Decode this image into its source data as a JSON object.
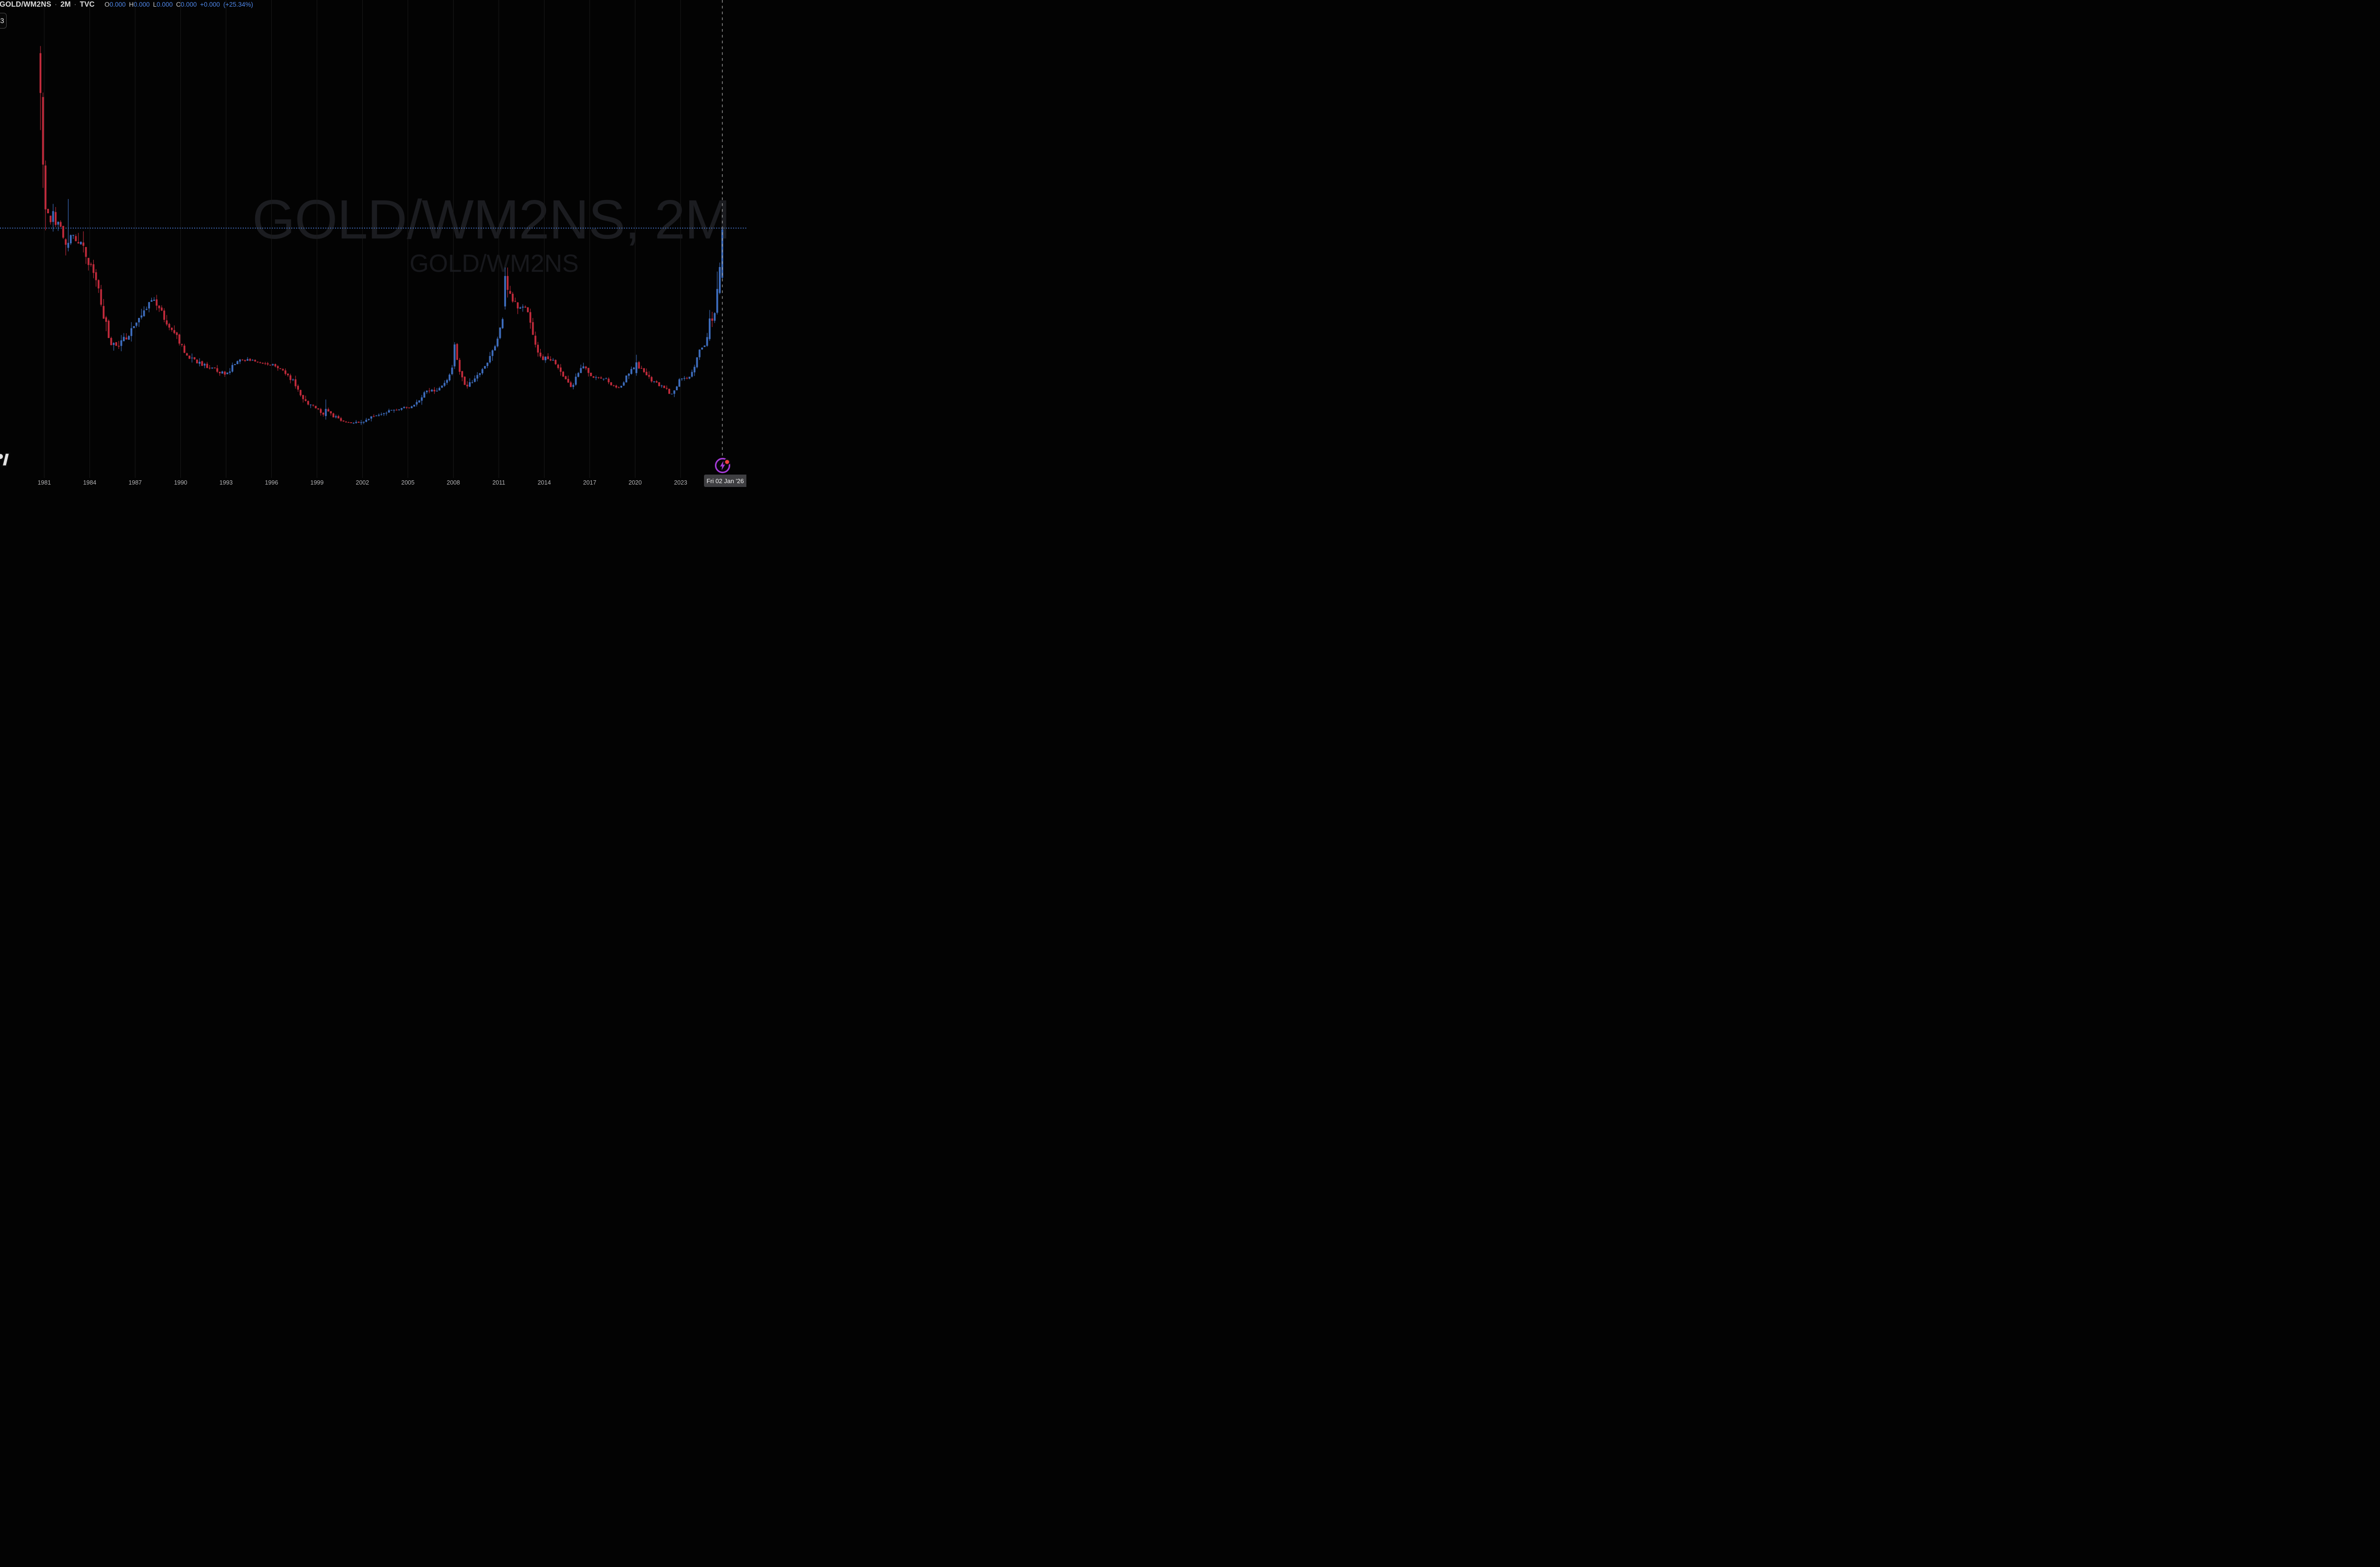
{
  "header": {
    "symbol_title": "GOLD/WM2NS",
    "separator": "·",
    "interval": "2M",
    "exchange": "TVC",
    "ohlc": [
      {
        "label": "O",
        "value": "0.000"
      },
      {
        "label": "H",
        "value": "0.000"
      },
      {
        "label": "L",
        "value": "0.000"
      },
      {
        "label": "C",
        "value": "0.000"
      }
    ],
    "change": "+0.000",
    "change_percent": "(+25.34%)"
  },
  "keystroke_box": {
    "text": "3"
  },
  "watermark": {
    "line1": "GOLD/WM2NS, 2M",
    "line2": "GOLD/WM2NS"
  },
  "time_axis": {
    "labels": [
      "1981",
      "1984",
      "1987",
      "1990",
      "1993",
      "1996",
      "1999",
      "2002",
      "2005",
      "2008",
      "2011",
      "2014",
      "2017",
      "2020",
      "2023"
    ],
    "start_year": 1981,
    "step_years": 3
  },
  "crosshair_date_badge": "Fri 02 Jan '26",
  "last_bar_marker": {
    "icon": "lightning-bolt-icon",
    "alert_dot": true
  },
  "colors": {
    "background": "#030303",
    "grid": "#1a1a1a",
    "up": "#3e6ebf",
    "down": "#c32b3c",
    "current_price_line": "#4d80dd",
    "last_bar_line": "#a3a3a3",
    "axis_text": "#b4b4b6",
    "header_text": "#dcdcdc",
    "header_values": "#4f87e8",
    "watermark": "#1b1c20",
    "badge_bg": "#3f3f42",
    "badge_text": "#f2f2f2",
    "marker_purple": "#a43bd6",
    "marker_dot": "#f4403f"
  },
  "chart_data": {
    "type": "candlestick",
    "symbol": "GOLD/WM2NS",
    "interval": "2M",
    "title": "GOLD/WM2NS, 2M",
    "note": "No price axis is visible in the screenshot; levels are relative 0-100 of pane height. Gold priced in M2 money supply: 1980 spike, long decline to 2001 low, 2011 peak, 2025 vertical rally to current price line.",
    "value_scale": "relative 0-100",
    "x_start_year": 1980.75,
    "x_step_years": 0.16667,
    "candle_count": 271,
    "current_price_level": 55.4,
    "x_tick_years": [
      1981,
      1984,
      1987,
      1990,
      1993,
      1996,
      1999,
      2002,
      2005,
      2008,
      2011,
      2014,
      2017,
      2020,
      2023
    ],
    "envelope": [
      [
        1980.75,
        88,
        8
      ],
      [
        1981,
        67,
        7
      ],
      [
        1981.2,
        59.6,
        5
      ],
      [
        1981.5,
        58.3,
        3.5
      ],
      [
        1982,
        56.1,
        3
      ],
      [
        1982.33,
        52.7,
        2.6
      ],
      [
        1982.67,
        53.2,
        2.6
      ],
      [
        1983,
        53.5,
        2.2
      ],
      [
        1983.4,
        51.9,
        2.2
      ],
      [
        1983.8,
        48.9,
        2.4
      ],
      [
        1984.2,
        45,
        2.2
      ],
      [
        1984.6,
        41,
        2.2
      ],
      [
        1985,
        34.9,
        2.4
      ],
      [
        1985.4,
        29.6,
        1.9
      ],
      [
        1985.8,
        28.9,
        1.4
      ],
      [
        1986.2,
        30.4,
        1.4
      ],
      [
        1986.6,
        31.8,
        1.3
      ],
      [
        1987,
        33.4,
        1.3
      ],
      [
        1987.4,
        35.9,
        1.4
      ],
      [
        1987.8,
        37.8,
        1.4
      ],
      [
        1988.2,
        39.3,
        1.3
      ],
      [
        1988.5,
        38.4,
        1.2
      ],
      [
        1988.8,
        36,
        1.3
      ],
      [
        1989.2,
        33.7,
        1.1
      ],
      [
        1989.6,
        32.2,
        1
      ],
      [
        1990,
        29.6,
        1.2
      ],
      [
        1990.4,
        26.8,
        1.1
      ],
      [
        1990.8,
        26,
        0.9
      ],
      [
        1991.3,
        25.1,
        0.8
      ],
      [
        1991.8,
        24.4,
        0.7
      ],
      [
        1992.4,
        23.6,
        0.7
      ],
      [
        1992.9,
        22.8,
        0.7
      ],
      [
        1993.2,
        23.4,
        0.8
      ],
      [
        1993.5,
        25.1,
        0.8
      ],
      [
        1994,
        25.9,
        0.6
      ],
      [
        1994.5,
        25.9,
        0.5
      ],
      [
        1995,
        25.5,
        0.5
      ],
      [
        1995.5,
        25.3,
        0.5
      ],
      [
        1996,
        24.9,
        0.5
      ],
      [
        1996.5,
        24.3,
        0.6
      ],
      [
        1997,
        22.6,
        0.7
      ],
      [
        1997.5,
        21,
        0.8
      ],
      [
        1998,
        17.4,
        0.9
      ],
      [
        1998.5,
        15.9,
        0.7
      ],
      [
        1999,
        15.1,
        0.6
      ],
      [
        1999.4,
        13.9,
        0.6
      ],
      [
        1999.67,
        14.3,
        0.8
      ],
      [
        2000,
        13.5,
        0.6
      ],
      [
        2000.5,
        12.7,
        0.5
      ],
      [
        2001,
        12,
        0.45
      ],
      [
        2001.5,
        11.9,
        0.45
      ],
      [
        2002,
        12.2,
        0.5
      ],
      [
        2002.5,
        13.1,
        0.6
      ],
      [
        2003,
        13.8,
        0.6
      ],
      [
        2003.5,
        14.3,
        0.55
      ],
      [
        2004,
        14.7,
        0.55
      ],
      [
        2004.5,
        15.1,
        0.5
      ],
      [
        2005,
        15.3,
        0.45
      ],
      [
        2005.5,
        16,
        0.55
      ],
      [
        2006,
        18.3,
        0.9
      ],
      [
        2006.4,
        19.1,
        0.8
      ],
      [
        2006.8,
        18.7,
        0.7
      ],
      [
        2007.2,
        20,
        0.7
      ],
      [
        2007.6,
        21.3,
        0.8
      ],
      [
        2007.9,
        24.3,
        1.1
      ],
      [
        2008.25,
        25.8,
        1.2
      ],
      [
        2008.6,
        21.3,
        1.2
      ],
      [
        2008.75,
        20,
        0.9
      ],
      [
        2009,
        20.6,
        0.8
      ],
      [
        2009.4,
        21.6,
        0.8
      ],
      [
        2009.8,
        23,
        0.8
      ],
      [
        2010.2,
        25.3,
        0.9
      ],
      [
        2010.6,
        27.9,
        1
      ],
      [
        2011,
        31.9,
        1.2
      ],
      [
        2011.3,
        36,
        1.4
      ],
      [
        2011.7,
        41,
        1.8
      ],
      [
        2011.9,
        39.4,
        1.6
      ],
      [
        2012.2,
        37.8,
        1.4
      ],
      [
        2012.6,
        37.4,
        1.2
      ],
      [
        2012.9,
        36.7,
        1.1
      ],
      [
        2013.2,
        31.9,
        1.5
      ],
      [
        2013.5,
        27.7,
        1.3
      ],
      [
        2013.9,
        26.3,
        0.9
      ],
      [
        2014.3,
        26.6,
        0.9
      ],
      [
        2014.7,
        25.4,
        0.8
      ],
      [
        2015.1,
        23.4,
        0.8
      ],
      [
        2015.5,
        21.2,
        0.8
      ],
      [
        2015.8,
        19.7,
        0.7
      ],
      [
        2016.1,
        22.3,
        0.9
      ],
      [
        2016.45,
        24.7,
        0.9
      ],
      [
        2016.8,
        23.6,
        0.8
      ],
      [
        2017.2,
        22.1,
        0.6
      ],
      [
        2017.6,
        21.9,
        0.45
      ],
      [
        2018,
        21.9,
        0.45
      ],
      [
        2018.4,
        20.6,
        0.6
      ],
      [
        2018.8,
        19.4,
        0.55
      ],
      [
        2019.2,
        20.9,
        0.7
      ],
      [
        2019.6,
        23.2,
        0.8
      ],
      [
        2019.9,
        23.9,
        0.7
      ],
      [
        2020.3,
        24.3,
        0.85
      ],
      [
        2020.8,
        22.1,
        0.8
      ],
      [
        2021.2,
        21.2,
        0.6
      ],
      [
        2021.6,
        20.2,
        0.55
      ],
      [
        2022,
        19.6,
        0.55
      ],
      [
        2022.35,
        18.2,
        0.6
      ],
      [
        2022.7,
        20,
        0.8
      ],
      [
        2023,
        21.8,
        0.7
      ],
      [
        2023.35,
        21.7,
        0.6
      ],
      [
        2023.7,
        22.8,
        0.6
      ],
      [
        2024,
        24.8,
        0.8
      ],
      [
        2024.15,
        27.2,
        0.9
      ],
      [
        2024.4,
        28.8,
        1
      ],
      [
        2024.65,
        29.2,
        1
      ],
      [
        2024.9,
        33,
        1.2
      ],
      [
        2025.05,
        34.8,
        1.1
      ],
      [
        2025.2,
        35.5,
        1.1
      ],
      [
        2025.42,
        41.8,
        1.5
      ],
      [
        2025.58,
        46.7,
        1.6
      ],
      [
        2025.75,
        55.1,
        1.8
      ]
    ],
    "key_candles": {
      "0": [
        94.5,
        96.1,
        77.3,
        85.6
      ],
      "1": [
        84.7,
        85.7,
        64.4,
        69.6
      ],
      "2": [
        69.4,
        70.5,
        54.9,
        59.6
      ],
      "11": [
        51.0,
        61.9,
        50.2,
        52.1
      ],
      "113": [
        13.4,
        17.1,
        12.6,
        15.0
      ],
      "164": [
        24.5,
        29.9,
        23.9,
        29.4
      ],
      "184": [
        37.9,
        46.6,
        37.2,
        44.7
      ],
      "185": [
        44.7,
        46.6,
        39.9,
        41.6
      ],
      "236": [
        23.0,
        27.1,
        22.4,
        25.4
      ],
      "265": [
        30.6,
        37.1,
        30.2,
        35.2
      ],
      "266": [
        35.2,
        36.7,
        33.3,
        34.7
      ],
      "267": [
        34.7,
        36.6,
        34.2,
        36.4
      ],
      "268": [
        36.5,
        45.7,
        36.1,
        41.8
      ],
      "269": [
        40.9,
        47.7,
        40.6,
        46.7
      ],
      "270": [
        44.3,
        55.4,
        43.9,
        55.1
      ]
    }
  }
}
